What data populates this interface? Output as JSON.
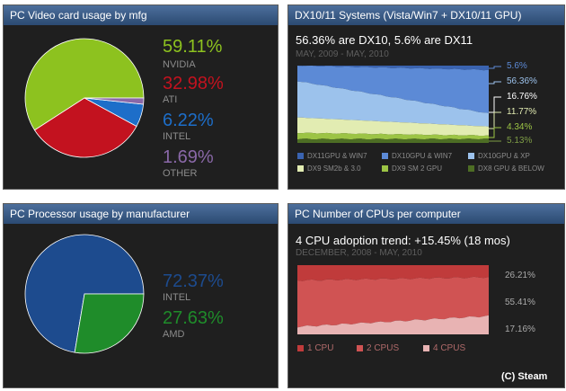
{
  "panels": [
    {
      "title": "PC Video card usage by mfg"
    },
    {
      "title": "DX10/11 Systems (Vista/Win7 + DX10/11 GPU)"
    },
    {
      "title": "PC Processor usage by manufacturer"
    },
    {
      "title": "PC Number of CPUs per computer"
    }
  ],
  "chart_data": [
    {
      "type": "pie",
      "title": "PC Video card usage by mfg",
      "slices": [
        {
          "label": "NVIDIA",
          "value": 59.11,
          "display": "59.11%",
          "color": "#8dc21f"
        },
        {
          "label": "ATI",
          "value": 32.98,
          "display": "32.98%",
          "color": "#c3121f"
        },
        {
          "label": "INTEL",
          "value": 6.22,
          "display": "6.22%",
          "color": "#1d6ec9"
        },
        {
          "label": "OTHER",
          "value": 1.69,
          "display": "1.69%",
          "color": "#8a68a8"
        }
      ]
    },
    {
      "type": "area",
      "title": "DX10/11 Systems (Vista/Win7 + DX10/11 GPU)",
      "subtitle": "56.36% are DX10, 5.6% are DX11",
      "date_range": "MAY, 2009 - MAY, 2010",
      "stacked_percent": true,
      "series": [
        {
          "name": "DX11GPU & WIN7",
          "color": "#3a63b0",
          "start": 0,
          "end": 5.6,
          "label": "5.6%"
        },
        {
          "name": "DX10GPU & WIN7",
          "color": "#5c8ad6",
          "start": 20,
          "end": 56.36,
          "label": "56.36%"
        },
        {
          "name": "DX10GPU & XP",
          "color": "#9cc2ec",
          "start": 47,
          "end": 16.76,
          "label": "16.76%"
        },
        {
          "name": "DX9 SM2b & 3.0",
          "color": "#e2ecb2",
          "start": 20,
          "end": 11.77,
          "label": "11.77%"
        },
        {
          "name": "DX9 SM 2 GPU",
          "color": "#9cc445",
          "start": 8,
          "end": 4.34,
          "label": "4.34%"
        },
        {
          "name": "DX8 GPU & BELOW",
          "color": "#4d6d24",
          "start": 5,
          "end": 5.13,
          "label": "5.13%"
        }
      ]
    },
    {
      "type": "pie",
      "title": "PC Processor usage by manufacturer",
      "slices": [
        {
          "label": "INTEL",
          "value": 72.37,
          "display": "72.37%",
          "color": "#1d4b8e"
        },
        {
          "label": "AMD",
          "value": 27.63,
          "display": "27.63%",
          "color": "#1f8c2a"
        }
      ]
    },
    {
      "type": "area",
      "title": "PC Number of CPUs per computer",
      "subtitle": "4 CPU adoption trend: +15.45% (18 mos)",
      "date_range": "DECEMBER, 2008 - MAY, 2010",
      "stacked_percent": true,
      "series": [
        {
          "name": "1 CPU",
          "color": "#c03b3b",
          "start": 22,
          "end": 17.16,
          "label": "17.16%"
        },
        {
          "name": "2 CPUS",
          "color": "#d05353",
          "start": 67,
          "end": 55.41,
          "label": "55.41%"
        },
        {
          "name": "4 CPUS",
          "color": "#e8b3b3",
          "start": 11,
          "end": 26.21,
          "label": "26.21%"
        }
      ]
    }
  ],
  "credit": "(C) Steam"
}
